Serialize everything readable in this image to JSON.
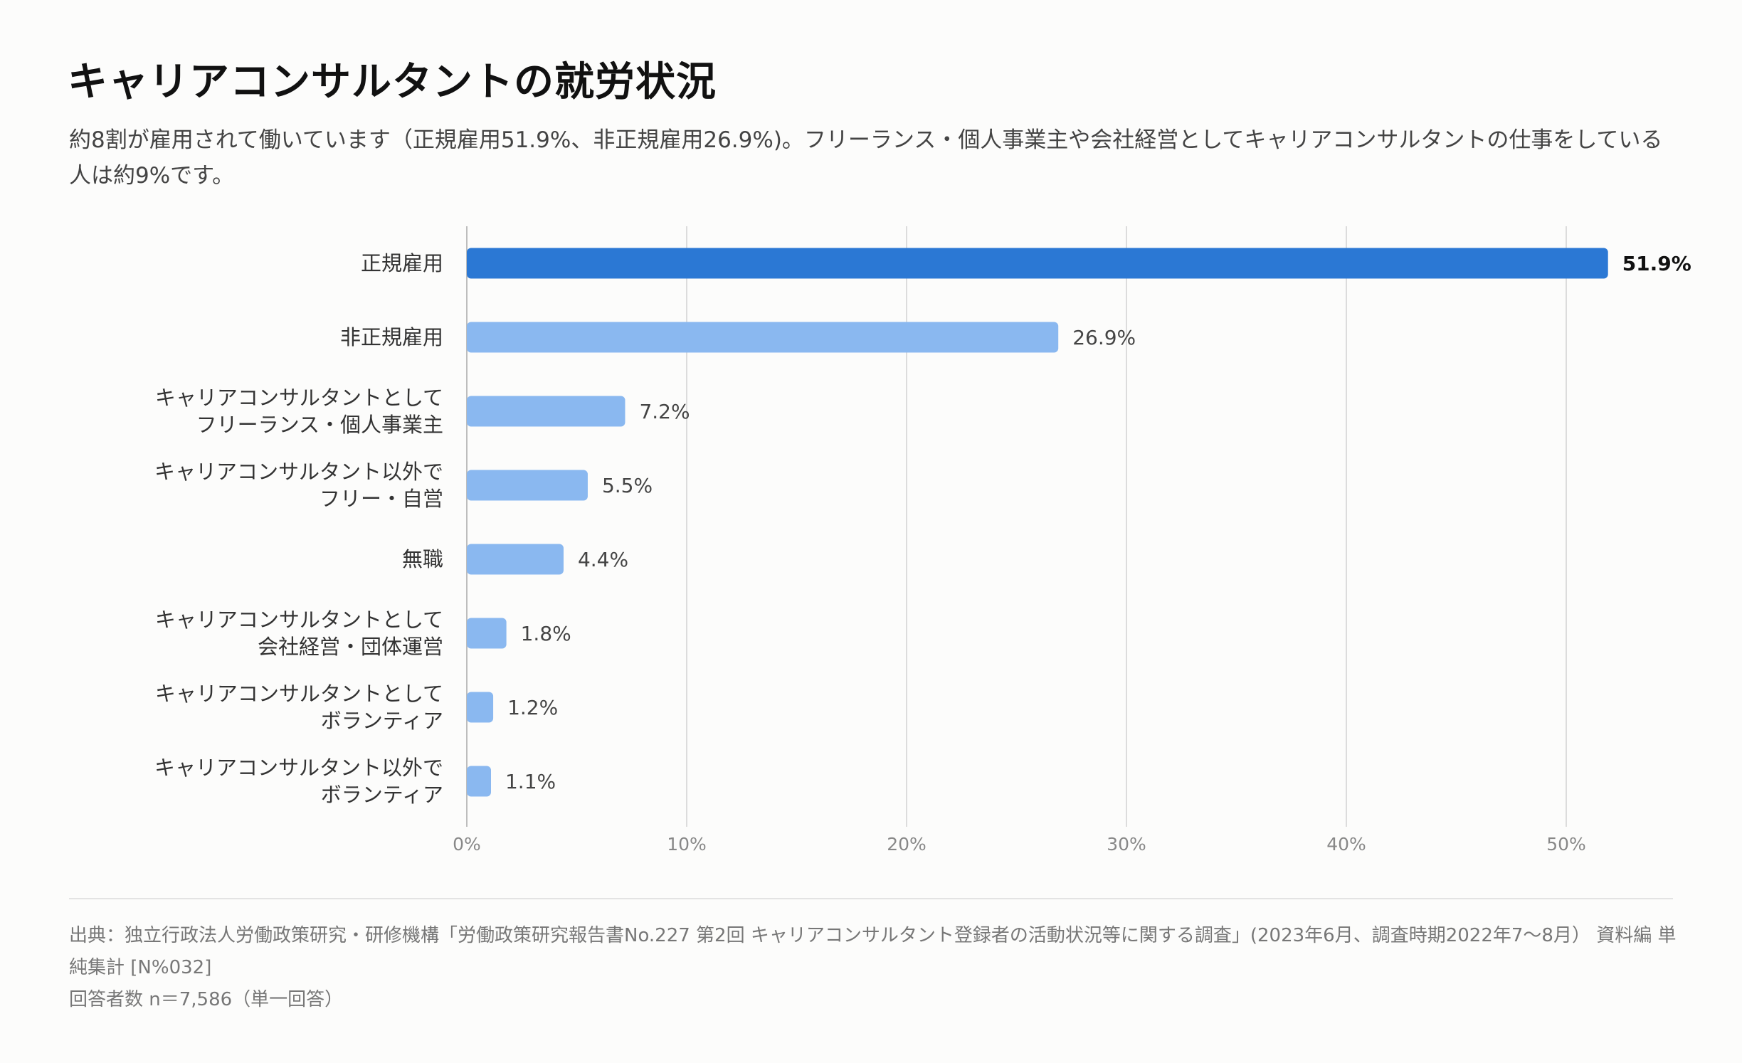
{
  "title": "キャリアコンサルタントの就労状況",
  "subtitle": "約8割が雇用されて働いています（正規雇用51.9%、非正規雇用26.9%)。フリーランス・個人事業主や会社経営としてキャリアコンサルタントの仕事をしている人は約9%です。",
  "colors": {
    "highlight_bar": "#2b78d4",
    "bar": "#8ab8f0",
    "gridline": "#dcdcdc",
    "category_text": "#333333",
    "value_text": "#444444",
    "axis_text": "#888888"
  },
  "chart_data": {
    "type": "bar",
    "orientation": "horizontal",
    "title": "",
    "xlabel": "",
    "ylabel": "",
    "xlim": [
      0,
      55
    ],
    "ticks": [
      0,
      10,
      20,
      30,
      40,
      50
    ],
    "tick_labels": [
      "0%",
      "10%",
      "20%",
      "30%",
      "40%",
      "50%"
    ],
    "grid": true,
    "highlight_index": 0,
    "categories": [
      [
        "正規雇用"
      ],
      [
        "非正規雇用"
      ],
      [
        "キャリアコンサルタントとして",
        "フリーランス・個人事業主"
      ],
      [
        "キャリアコンサルタント以外で",
        "フリー・自営"
      ],
      [
        "無職"
      ],
      [
        "キャリアコンサルタントとして",
        "会社経営・団体運営"
      ],
      [
        "キャリアコンサルタントとして",
        "ボランティア"
      ],
      [
        "キャリアコンサルタント以外で",
        "ボランティア"
      ]
    ],
    "values": [
      51.9,
      26.9,
      7.2,
      5.5,
      4.4,
      1.8,
      1.2,
      1.1
    ],
    "value_labels": [
      "51.9%",
      "26.9%",
      "7.2%",
      "5.5%",
      "4.4%",
      "1.8%",
      "1.2%",
      "1.1%"
    ]
  },
  "footer": {
    "source": "出典：独立行政法人労働政策研究・研修機構「労働政策研究報告書No.227 第2回 キャリアコンサルタント登録者の活動状況等に関する調査」(2023年6月、調査時期2022年7〜8月） 資料編 単純集計 [N%032]",
    "respondents": "回答者数 n＝7,586（単一回答）"
  }
}
